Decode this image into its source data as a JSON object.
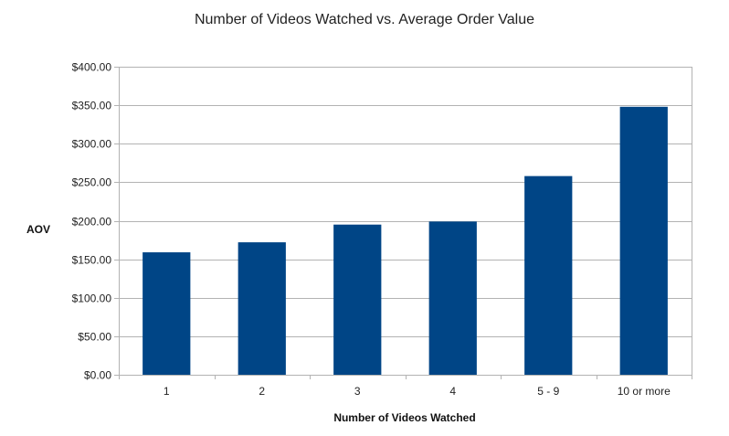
{
  "chart_data": {
    "type": "bar",
    "title": "Number of Videos Watched vs. Average Order Value",
    "xlabel": "Number of Videos Watched",
    "ylabel": "AOV",
    "categories": [
      "1",
      "2",
      "3",
      "4",
      "5 - 9",
      "10 or more"
    ],
    "values": [
      159,
      172,
      195,
      199,
      258,
      348
    ],
    "ylim": [
      0,
      400
    ],
    "yticks": [
      0,
      50,
      100,
      150,
      200,
      250,
      300,
      350,
      400
    ],
    "ytick_labels": [
      "$0.00",
      "$50.00",
      "$100.00",
      "$150.00",
      "$200.00",
      "$250.00",
      "$300.00",
      "$350.00",
      "$400.00"
    ],
    "bar_color": "#004586",
    "grid": true,
    "legend": "none"
  }
}
